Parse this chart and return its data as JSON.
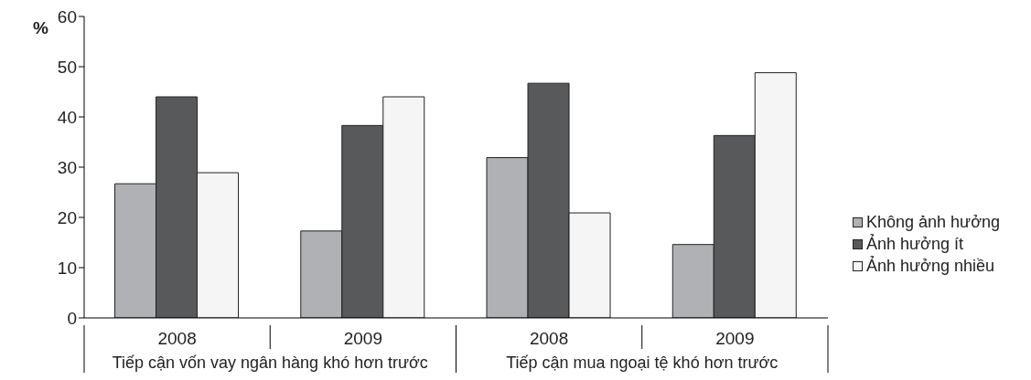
{
  "chart_data": {
    "type": "bar",
    "ylabel": "%",
    "categories": [
      "2008",
      "2009",
      "2008",
      "2009"
    ],
    "series": [
      {
        "name": "Không ảnh hưởng",
        "color": "#b0b1b4",
        "values": [
          26.7,
          17.3,
          31.9,
          14.6
        ]
      },
      {
        "name": "Ảnh hưởng ít",
        "color": "#58595b",
        "values": [
          44,
          38.3,
          46.7,
          36.3
        ]
      },
      {
        "name": "Ảnh hưởng nhiều",
        "color": "#f5f5f5",
        "values": [
          28.9,
          44,
          20.9,
          48.8
        ]
      }
    ],
    "ylim": [
      0,
      60
    ],
    "yticks": [
      0,
      10,
      20,
      30,
      40,
      50,
      60
    ],
    "grid": false,
    "legend": "right",
    "annotations": [
      "Tiếp cận vốn vay ngân hàng khó hơn trước",
      "Tiếp cận mua ngoại tệ khó hơn trước"
    ]
  }
}
